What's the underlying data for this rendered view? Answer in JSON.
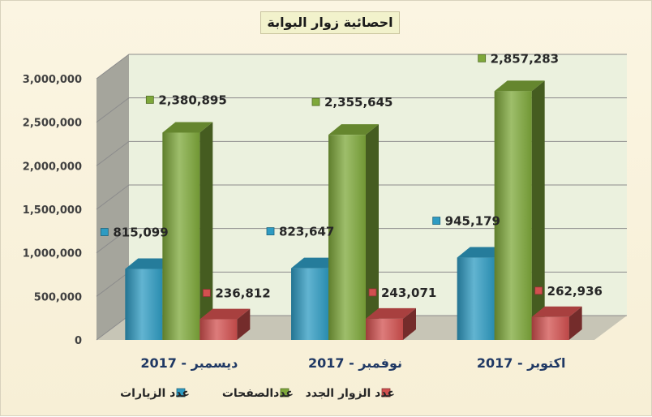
{
  "chart_data": {
    "type": "bar",
    "title": "احصائية زوار البوابة",
    "categories": [
      "ديسمبر - 2017",
      "نوفمبر - 2017",
      "اكتوبر - 2017"
    ],
    "series": [
      {
        "name": "عدد الزيارات",
        "color": "#2e9bc2",
        "values": [
          815099,
          823647,
          945179
        ],
        "labels": [
          "815,099",
          "823,647",
          "945,179"
        ]
      },
      {
        "name": "عددالصفحات",
        "color": "#7ea83a",
        "values": [
          2380895,
          2355645,
          2857283
        ],
        "labels": [
          "2,380,895",
          "2,355,645",
          "2,857,283"
        ]
      },
      {
        "name": "عدد الزوار الجدد",
        "color": "#d2504f",
        "values": [
          236812,
          243071,
          262936
        ],
        "labels": [
          "236,812",
          "243,071",
          "262,936"
        ]
      }
    ],
    "yticks": [
      0,
      500000,
      1000000,
      1500000,
      2000000,
      2500000,
      3000000
    ],
    "ytick_labels": [
      "0",
      "500,000",
      "1,000,000",
      "1,500,000",
      "2,000,000",
      "2,500,000",
      "3,000,000"
    ],
    "ylim": [
      0,
      3000000
    ],
    "legend_position": "bottom",
    "grid": true,
    "view": "3d-clustered-column"
  }
}
